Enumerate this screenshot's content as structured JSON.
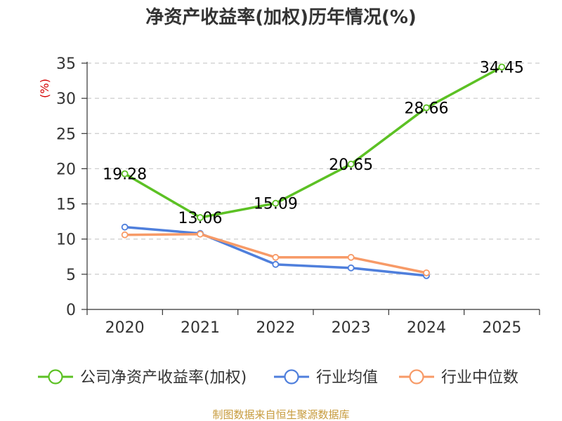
{
  "chart_data": {
    "type": "line",
    "title": "净资产收益率(加权)历年情况(%)",
    "ylabel": "(%)",
    "xlabel": "",
    "categories": [
      "2020",
      "2021",
      "2022",
      "2023",
      "2024",
      "2025"
    ],
    "ylim": [
      0,
      35
    ],
    "yticks": [
      0,
      5,
      10,
      15,
      20,
      25,
      30,
      35
    ],
    "grid": true,
    "legend_position": "bottom",
    "series": [
      {
        "name": "公司净资产收益率(加权)",
        "color": "#5cc124",
        "values": [
          19.28,
          13.06,
          15.09,
          20.65,
          28.66,
          34.45
        ],
        "labels": [
          "19.28",
          "13.06",
          "15.09",
          "20.65",
          "28.66",
          "34.45"
        ]
      },
      {
        "name": "行业均值",
        "color": "#4f7fdc",
        "values": [
          11.7,
          10.8,
          6.4,
          5.9,
          4.8,
          null
        ]
      },
      {
        "name": "行业中位数",
        "color": "#f79a67",
        "values": [
          10.6,
          10.7,
          7.4,
          7.4,
          5.2,
          null
        ]
      }
    ],
    "source": "制图数据来自恒生聚源数据库",
    "colors": {
      "axis": "#333333",
      "grid": "#cccccc",
      "unit": "#d40000",
      "source": "#c79b3d"
    }
  }
}
